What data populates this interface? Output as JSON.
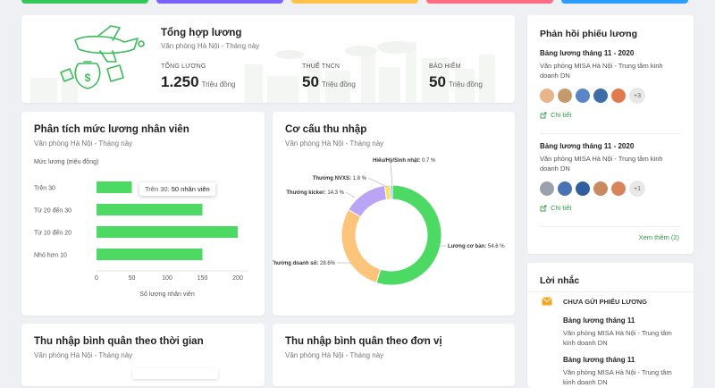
{
  "colors": {
    "accent_green": "#4cd964",
    "donut_green": "#4cd964",
    "donut_orange": "#fdc57b",
    "donut_purple": "#b9a4f6",
    "donut_yellow": "#ffe066",
    "donut_blue": "#7ab8ff",
    "link_green": "#2e9b4a",
    "reminder_orange": "#f5a623",
    "top_strips": [
      "#34c759",
      "#7b61ff",
      "#ffc24b",
      "#ff6b81",
      "#2d9cff"
    ]
  },
  "summary": {
    "title": "Tổng hợp lương",
    "subtitle": "Văn phòng Hà Nội - Tháng này",
    "items": [
      {
        "label": "TỔNG LƯƠNG",
        "value": "1.250",
        "unit": "Triệu đồng"
      },
      {
        "label": "THUẾ TNCN",
        "value": "50",
        "unit": "Triệu đồng"
      },
      {
        "label": "BẢO HIỂM",
        "value": "50",
        "unit": "Triệu đồng"
      }
    ],
    "illustration_icon": "airplane-money-illustration"
  },
  "salary_analysis": {
    "title": "Phân tích mức lương nhân viên",
    "subtitle": "Văn phòng Hà Nội - Tháng này",
    "tooltip": {
      "label": "Trên 30:",
      "value": "50 nhân viên"
    }
  },
  "income_structure": {
    "title": "Cơ cấu thu nhập",
    "subtitle": "Văn phòng Hà Nội - Tháng này"
  },
  "avg_time": {
    "title": "Thu nhập bình quân theo thời gian",
    "subtitle": "Văn phòng Hà Nội - Tháng này"
  },
  "avg_unit": {
    "title": "Thu nhập bình quân theo đơn vị",
    "subtitle": "Văn phòng Hà Nội - Tháng này"
  },
  "feedback": {
    "title": "Phản hồi phiếu lương",
    "items": [
      {
        "title": "Bảng lương tháng 11 - 2020",
        "desc": "Văn phòng MISA Hà Nội - Trung tâm kinh doanh DN",
        "more": "+3",
        "link": "Chi tiết"
      },
      {
        "title": "Bảng lương tháng 11 - 2020",
        "desc": "Văn phòng MISA Hà Nội - Trung tâm kinh doanh DN",
        "more": "+1",
        "link": "Chi tiết"
      }
    ],
    "see_more": "Xem thêm (2)"
  },
  "reminder": {
    "title": "Lời nhắc",
    "heading": "CHƯA GỬI PHIẾU LƯƠNG",
    "items": [
      {
        "title": "Bảng lương tháng 11",
        "desc": "Văn phòng MISA Hà Nội - Trung tâm kinh doanh DN"
      },
      {
        "title": "Bảng lương tháng 11",
        "desc": "Văn phòng MISA Hà Nội - Trung tâm kinh doanh DN"
      }
    ]
  },
  "chart_data": [
    {
      "type": "bar",
      "orientation": "horizontal",
      "title": "",
      "ylabel": "Mức lương (triệu đồng)",
      "xlabel": "Số lượng nhân viên",
      "categories": [
        "Trên 30",
        "Từ 20 đến 30",
        "Từ 10 đến 20",
        "Nhỏ hơn 10"
      ],
      "values": [
        50,
        150,
        200,
        150
      ],
      "xlim": [
        0,
        200
      ],
      "xticks": [
        0,
        50,
        100,
        150,
        200
      ],
      "grid": false
    },
    {
      "type": "pie",
      "style": "donut",
      "title": "",
      "slices": [
        {
          "label": "Lương cơ bản:",
          "pct_text": "54.6 %",
          "value": 54.6
        },
        {
          "label": "Thưởng doanh số:",
          "pct_text": "28.6%",
          "value": 28.6
        },
        {
          "label": "Thưởng kicker:",
          "pct_text": "14.3 %",
          "value": 14.3
        },
        {
          "label": "Thưởng NVXS:",
          "pct_text": "1.8 %",
          "value": 1.8
        },
        {
          "label": "Hiếu/Hỷ/Sinh nhật:",
          "pct_text": "0.7 %",
          "value": 0.7
        }
      ]
    }
  ]
}
